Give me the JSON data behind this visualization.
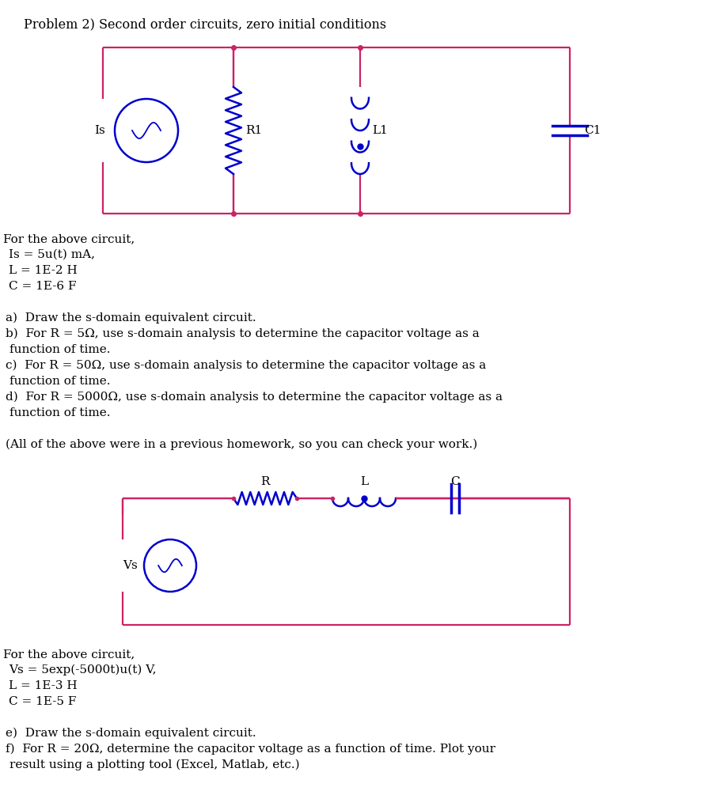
{
  "title": "Problem 2) Second order circuits, zero initial conditions",
  "bg_color": "#ffffff",
  "text_color": "#000000",
  "cc": "#cc2266",
  "bc": "#0000cc",
  "body_text": [
    [
      "For the above circuit,",
      0.32
    ],
    [
      "Is = 5u(t) mA,",
      0.95
    ],
    [
      "L = 1E-2 H",
      0.95
    ],
    [
      "C = 1E-6 F",
      0.95
    ],
    [
      "",
      0.32
    ],
    [
      "a)  Draw the s-domain equivalent circuit.",
      0.62
    ],
    [
      "b)  For R = 5Ω, use s-domain analysis to determine the capacitor voltage as a",
      0.62
    ],
    [
      "function of time.",
      1.1
    ],
    [
      "c)  For R = 50Ω, use s-domain analysis to determine the capacitor voltage as a",
      0.62
    ],
    [
      "function of time.",
      1.1
    ],
    [
      "d)  For R = 5000Ω, use s-domain analysis to determine the capacitor voltage as a",
      0.62
    ],
    [
      "function of time.",
      1.1
    ],
    [
      "",
      0.32
    ],
    [
      "(All of the above were in a previous homework, so you can check your work.)",
      0.62
    ]
  ],
  "body_text2": [
    [
      "For the above circuit,",
      0.32
    ],
    [
      "Vs = 5exp(-5000t)u(t) V,",
      0.95
    ],
    [
      "L = 1E-3 H",
      0.95
    ],
    [
      "C = 1E-5 F",
      0.95
    ],
    [
      "",
      0.32
    ],
    [
      "e)  Draw the s-domain equivalent circuit.",
      0.62
    ],
    [
      "f)  For R = 20Ω, determine the capacitor voltage as a function of time. Plot your",
      0.62
    ],
    [
      "result using a plotting tool (Excel, Matlab, etc.)",
      1.1
    ]
  ]
}
